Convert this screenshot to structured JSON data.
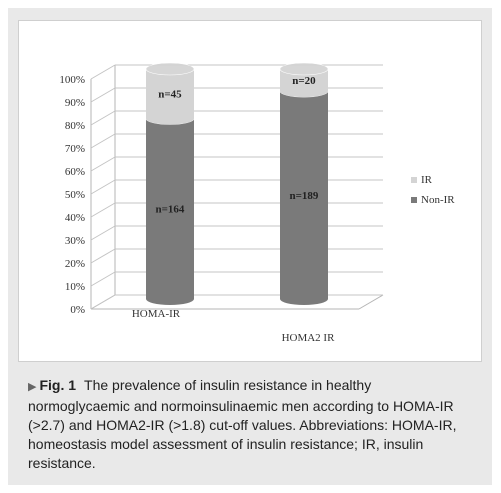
{
  "chart_data": {
    "type": "bar",
    "style": "3d-cylinder",
    "stacked": true,
    "percent": true,
    "categories": [
      "HOMA-IR",
      "HOMA2 IR"
    ],
    "series": [
      {
        "name": "IR",
        "values": [
          21.5,
          9.6
        ],
        "labels": [
          "n=45",
          "n=20"
        ],
        "color": "#d4d4d4"
      },
      {
        "name": "Non-IR",
        "values": [
          78.5,
          90.4
        ],
        "labels": [
          "n=164",
          "n=189"
        ],
        "color": "#7a7a7a"
      }
    ],
    "yticks": [
      "0%",
      "10%",
      "20%",
      "30%",
      "40%",
      "50%",
      "60%",
      "70%",
      "80%",
      "90%",
      "100%"
    ],
    "ylim": [
      0,
      100
    ],
    "grid": true,
    "legend": "right"
  },
  "caption": {
    "fig_label": "Fig. 1",
    "text": "The prevalence of insulin resistance in healthy normoglycaemic and normoinsulinaemic men according to HOMA-IR (>2.7) and HOMA2-IR (>1.8) cut-off values. Abbreviations: HOMA-IR, homeostasis model assessment of insulin resistance; IR, insulin resistance."
  }
}
